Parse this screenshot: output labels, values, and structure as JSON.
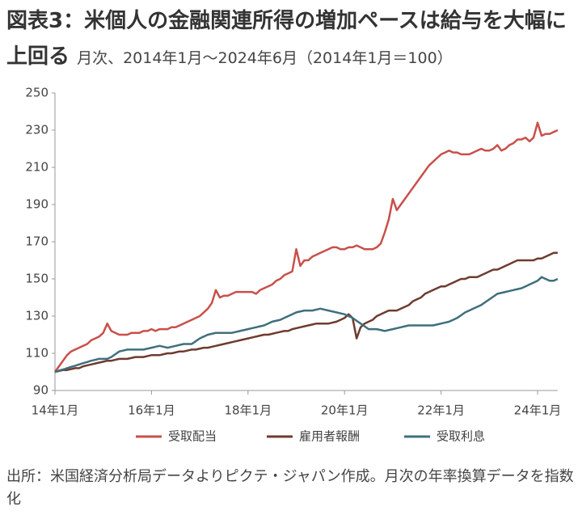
{
  "chart_data": {
    "type": "line",
    "title": "図表3：米個人の金融関連所得の増加ペースは給与を大幅に上回る",
    "subtitle": "月次、2014年1月～2024年6月（2014年1月＝100）",
    "source": "出所：米国経済分析局データよりピクテ・ジャパン作成。月次の年率換算データを指数化",
    "categories": [
      "14年1月",
      null,
      null,
      null,
      null,
      null,
      null,
      null,
      null,
      null,
      null,
      null,
      null,
      null,
      null,
      null,
      null,
      null,
      null,
      null,
      null,
      null,
      null,
      null,
      "16年1月",
      null,
      null,
      null,
      null,
      null,
      null,
      null,
      null,
      null,
      null,
      null,
      null,
      null,
      null,
      null,
      null,
      null,
      null,
      null,
      null,
      null,
      null,
      null,
      "18年1月",
      null,
      null,
      null,
      null,
      null,
      null,
      null,
      null,
      null,
      null,
      null,
      null,
      null,
      null,
      null,
      null,
      null,
      null,
      null,
      null,
      null,
      null,
      null,
      "20年1月",
      null,
      null,
      null,
      null,
      null,
      null,
      null,
      null,
      null,
      null,
      null,
      null,
      null,
      null,
      null,
      null,
      null,
      null,
      null,
      null,
      null,
      null,
      null,
      "22年1月",
      null,
      null,
      null,
      null,
      null,
      null,
      null,
      null,
      null,
      null,
      null,
      null,
      null,
      null,
      null,
      null,
      null,
      null,
      null,
      null,
      null,
      null,
      null,
      "24年1月",
      null,
      null,
      null,
      null,
      null
    ],
    "ylim": [
      90,
      250
    ],
    "yticks": [
      90,
      110,
      130,
      150,
      170,
      190,
      210,
      230,
      250
    ],
    "series": [
      {
        "name": "受取配当",
        "color": "#c8504a",
        "values": [
          100,
          103,
          106,
          109,
          111,
          112,
          113,
          114,
          115,
          117,
          118,
          119,
          121,
          126,
          122,
          121,
          120,
          120,
          120,
          121,
          121,
          121,
          122,
          122,
          123,
          122,
          123,
          123,
          123,
          124,
          124,
          125,
          126,
          127,
          128,
          129,
          130,
          132,
          134,
          137,
          144,
          140,
          141,
          141,
          142,
          143,
          143,
          143,
          143,
          143,
          142,
          144,
          145,
          146,
          147,
          149,
          150,
          152,
          153,
          154,
          166,
          157,
          160,
          160,
          162,
          163,
          164,
          165,
          166,
          167,
          167,
          166,
          166,
          167,
          167,
          168,
          167,
          166,
          166,
          166,
          167,
          169,
          175,
          182,
          193,
          187,
          190,
          193,
          196,
          199,
          202,
          205,
          208,
          211,
          213,
          215,
          217,
          218,
          219,
          218,
          218,
          217,
          217,
          217,
          218,
          219,
          220,
          219,
          219,
          220,
          222,
          219,
          220,
          222,
          223,
          225,
          225,
          226,
          224,
          226,
          234,
          227,
          228,
          228,
          229,
          230
        ]
      },
      {
        "name": "雇用者報酬",
        "color": "#6e3b30",
        "values": [
          100,
          100.5,
          101,
          101,
          101.5,
          102,
          102,
          103,
          103.5,
          104,
          104.5,
          105,
          105.5,
          106,
          106,
          106.5,
          107,
          107,
          107,
          107.5,
          108,
          108,
          108,
          108.5,
          109,
          109,
          109,
          109.5,
          110,
          110,
          110.5,
          111,
          111,
          111.5,
          112,
          112,
          112.5,
          113,
          113,
          113.5,
          114,
          114.5,
          115,
          115.5,
          116,
          116.5,
          117,
          117.5,
          118,
          118.5,
          119,
          119.5,
          120,
          120,
          120.5,
          121,
          121.5,
          122,
          122,
          123,
          123.5,
          124,
          124.5,
          125,
          125.5,
          126,
          126,
          126,
          126,
          126.5,
          127,
          128,
          129,
          131,
          129,
          118,
          124,
          126,
          127,
          128,
          130,
          131,
          132,
          133,
          133,
          133,
          134,
          135,
          136,
          138,
          139,
          140,
          142,
          143,
          144,
          145,
          146,
          146,
          147,
          148,
          149,
          150,
          150,
          151,
          151,
          151,
          152,
          153,
          154,
          155,
          155,
          156,
          157,
          158,
          159,
          160,
          160,
          160,
          160,
          160,
          161,
          161,
          162,
          163,
          164,
          164
        ]
      },
      {
        "name": "受取利息",
        "color": "#3f6f7c",
        "values": [
          100,
          100.7,
          101.3,
          102,
          102.7,
          103.3,
          104,
          104.7,
          105.3,
          106,
          106.5,
          107,
          107,
          107,
          108,
          109.5,
          111,
          111.5,
          112,
          112,
          112,
          112,
          112,
          112.5,
          113,
          113.5,
          114,
          113.5,
          113,
          113.5,
          114,
          114.5,
          115,
          115,
          115,
          116.5,
          118,
          119,
          120,
          120.5,
          121,
          121,
          121,
          121,
          121,
          121.5,
          122,
          122.5,
          123,
          123.5,
          124,
          124.5,
          125,
          126,
          127,
          127.5,
          128,
          129,
          130,
          131,
          132,
          132.5,
          133,
          133,
          133,
          133.5,
          134,
          133.5,
          133,
          132.5,
          132,
          131.5,
          131,
          130,
          129,
          127.5,
          126,
          124.5,
          123,
          123,
          123,
          122.5,
          122,
          122.5,
          123,
          123.5,
          124,
          124.5,
          125,
          125,
          125,
          125,
          125,
          125,
          125,
          125.5,
          126,
          126.5,
          127,
          128,
          129,
          130.5,
          132,
          133,
          134,
          135,
          136,
          137.5,
          139,
          140.5,
          142,
          142.5,
          143,
          143.5,
          144,
          144.5,
          145,
          146,
          147,
          148,
          149,
          151,
          150,
          149,
          149,
          150
        ]
      }
    ]
  }
}
